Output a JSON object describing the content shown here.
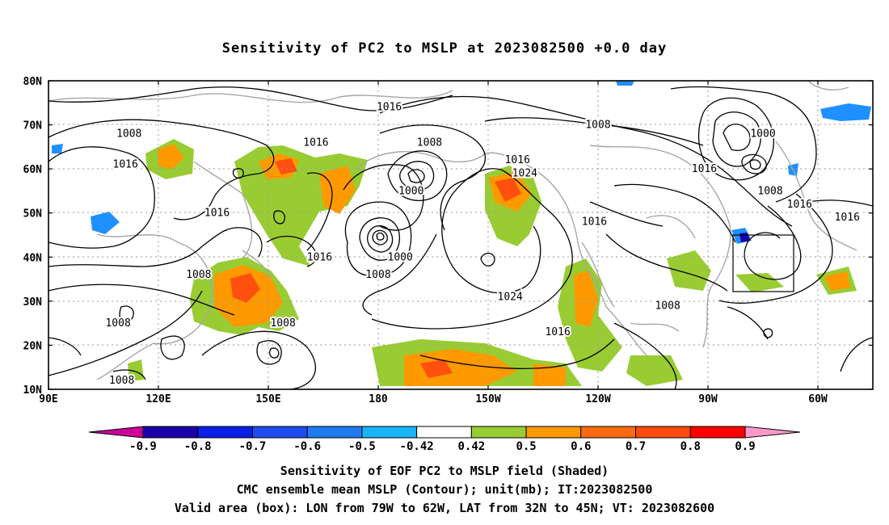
{
  "title": "Sensitivity of PC2 to MSLP at 2023082500 +0.0 day",
  "axes": {
    "lat_labels": [
      "80N",
      "70N",
      "60N",
      "50N",
      "40N",
      "30N",
      "20N",
      "10N"
    ],
    "lon_labels": [
      "90E",
      "120E",
      "150E",
      "180",
      "150W",
      "120W",
      "90W",
      "60W"
    ]
  },
  "contour_labels": [
    {
      "id": "c1",
      "text": "1016",
      "lon": -177,
      "lat": 74
    },
    {
      "id": "c2",
      "text": "1008",
      "lon": 112,
      "lat": 68
    },
    {
      "id": "c3",
      "text": "1016",
      "lon": 111,
      "lat": 61
    },
    {
      "id": "c4",
      "text": "1016",
      "lon": 163,
      "lat": 66
    },
    {
      "id": "c5",
      "text": "1008",
      "lon": -166,
      "lat": 66
    },
    {
      "id": "c6",
      "text": "1016",
      "lon": -142,
      "lat": 62
    },
    {
      "id": "c7",
      "text": "1024",
      "lon": -140,
      "lat": 59
    },
    {
      "id": "c8",
      "text": "1000",
      "lon": -171,
      "lat": 55
    },
    {
      "id": "c9",
      "text": "1008",
      "lon": -120,
      "lat": 70
    },
    {
      "id": "c10",
      "text": "1000",
      "lon": -75,
      "lat": 68
    },
    {
      "id": "c11",
      "text": "1016",
      "lon": -91,
      "lat": 60
    },
    {
      "id": "c12",
      "text": "1008",
      "lon": -73,
      "lat": 55
    },
    {
      "id": "c13",
      "text": "1016",
      "lon": -65,
      "lat": 52
    },
    {
      "id": "c14",
      "text": "1016",
      "lon": -52,
      "lat": 49
    },
    {
      "id": "c15",
      "text": "1016",
      "lon": 136,
      "lat": 50
    },
    {
      "id": "c16",
      "text": "1016",
      "lon": -121,
      "lat": 48
    },
    {
      "id": "c17",
      "text": "1016",
      "lon": 164,
      "lat": 40
    },
    {
      "id": "c18",
      "text": "1000",
      "lon": -174,
      "lat": 40
    },
    {
      "id": "c19",
      "text": "1008",
      "lon": -180,
      "lat": 36
    },
    {
      "id": "c20",
      "text": "1008",
      "lon": 131,
      "lat": 36
    },
    {
      "id": "c21",
      "text": "1024",
      "lon": -144,
      "lat": 31
    },
    {
      "id": "c22",
      "text": "1008",
      "lon": -101,
      "lat": 29
    },
    {
      "id": "c23",
      "text": "1008",
      "lon": 109,
      "lat": 25
    },
    {
      "id": "c24",
      "text": "1008",
      "lon": 154,
      "lat": 25
    },
    {
      "id": "c25",
      "text": "1016",
      "lon": -131,
      "lat": 23
    },
    {
      "id": "c26",
      "text": "1008",
      "lon": 110,
      "lat": 12
    }
  ],
  "colorbar": {
    "labels": [
      "-0.9",
      "-0.8",
      "-0.7",
      "-0.6",
      "-0.5",
      "-0.42",
      "0.42",
      "0.5",
      "0.6",
      "0.7",
      "0.8",
      "0.9"
    ],
    "colors": [
      "#1a00a8",
      "#0a20e6",
      "#1f4cf0",
      "#1e7cf0",
      "#18b4f5",
      "#ffffff",
      "#99cc33",
      "#ff9900",
      "#ff6a10",
      "#ff4a10",
      "#ff0000"
    ],
    "low_end_color": "#cc0099",
    "high_end_color": "#ff99cc"
  },
  "captions": {
    "line1": "Sensitivity of EOF PC2 to MSLP field (Shaded)",
    "line2": "CMC ensemble mean MSLP (Contour); unit(mb); IT:2023082500",
    "line3": "Valid area (box): LON from 79W to 62W, LAT from 32N to 45N; VT: 2023082600"
  },
  "valid_box": {
    "lon_min": -79,
    "lon_max": -62,
    "lat_min": 32,
    "lat_max": 45
  }
}
